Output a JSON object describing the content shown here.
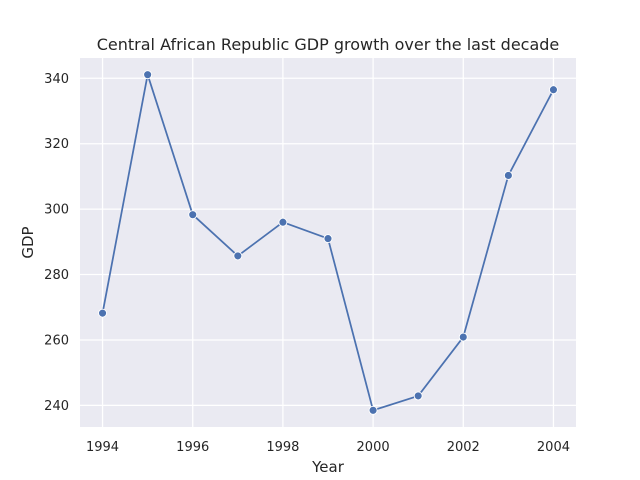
{
  "chart_data": {
    "type": "line",
    "title": "Central African Republic GDP growth over the last decade",
    "xlabel": "Year",
    "ylabel": "GDP",
    "x": [
      1994,
      1995,
      1996,
      1997,
      1998,
      1999,
      2000,
      2001,
      2002,
      2003,
      2004
    ],
    "series": [
      {
        "values": [
          268.2,
          341.1,
          298.3,
          285.7,
          296.0,
          291.0,
          238.5,
          242.9,
          260.9,
          310.3,
          336.5
        ]
      }
    ],
    "xlim": [
      1993.5,
      2004.5
    ],
    "ylim": [
      233.4,
      346.2
    ],
    "xticks": [
      1994,
      1996,
      1998,
      2000,
      2002,
      2004
    ],
    "yticks": [
      240,
      260,
      280,
      300,
      320,
      340
    ],
    "grid": true,
    "colors": {
      "line": "#4c72b0",
      "plot_background": "#eaeaf2",
      "grid": "#ffffff"
    }
  }
}
